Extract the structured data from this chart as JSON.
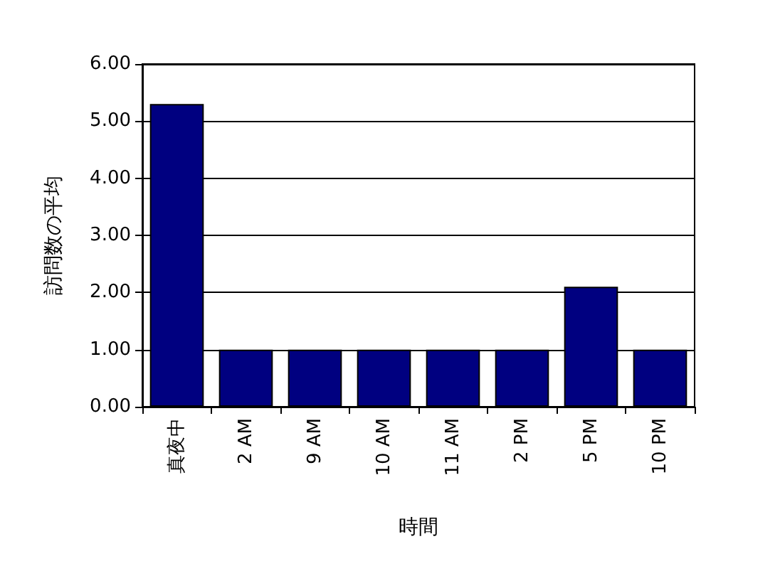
{
  "chart_data": {
    "type": "bar",
    "xlabel": "時間",
    "ylabel": "訪問数の平均",
    "categories": [
      "真夜中",
      "2 AM",
      "9 AM",
      "10 AM",
      "11 AM",
      "2 PM",
      "5 PM",
      "10 PM"
    ],
    "values": [
      5.3,
      1,
      1,
      1,
      1,
      1,
      2.1,
      1
    ],
    "color": "#000080",
    "ylim": [
      0,
      6
    ],
    "yticks": [
      {
        "value": 0,
        "label": "0.00"
      },
      {
        "value": 1,
        "label": "1.00"
      },
      {
        "value": 2,
        "label": "2.00"
      },
      {
        "value": 3,
        "label": "3.00"
      },
      {
        "value": 4,
        "label": "4.00"
      },
      {
        "value": 5,
        "label": "5.00"
      },
      {
        "value": 6,
        "label": "6.00"
      }
    ],
    "grid": "y"
  }
}
